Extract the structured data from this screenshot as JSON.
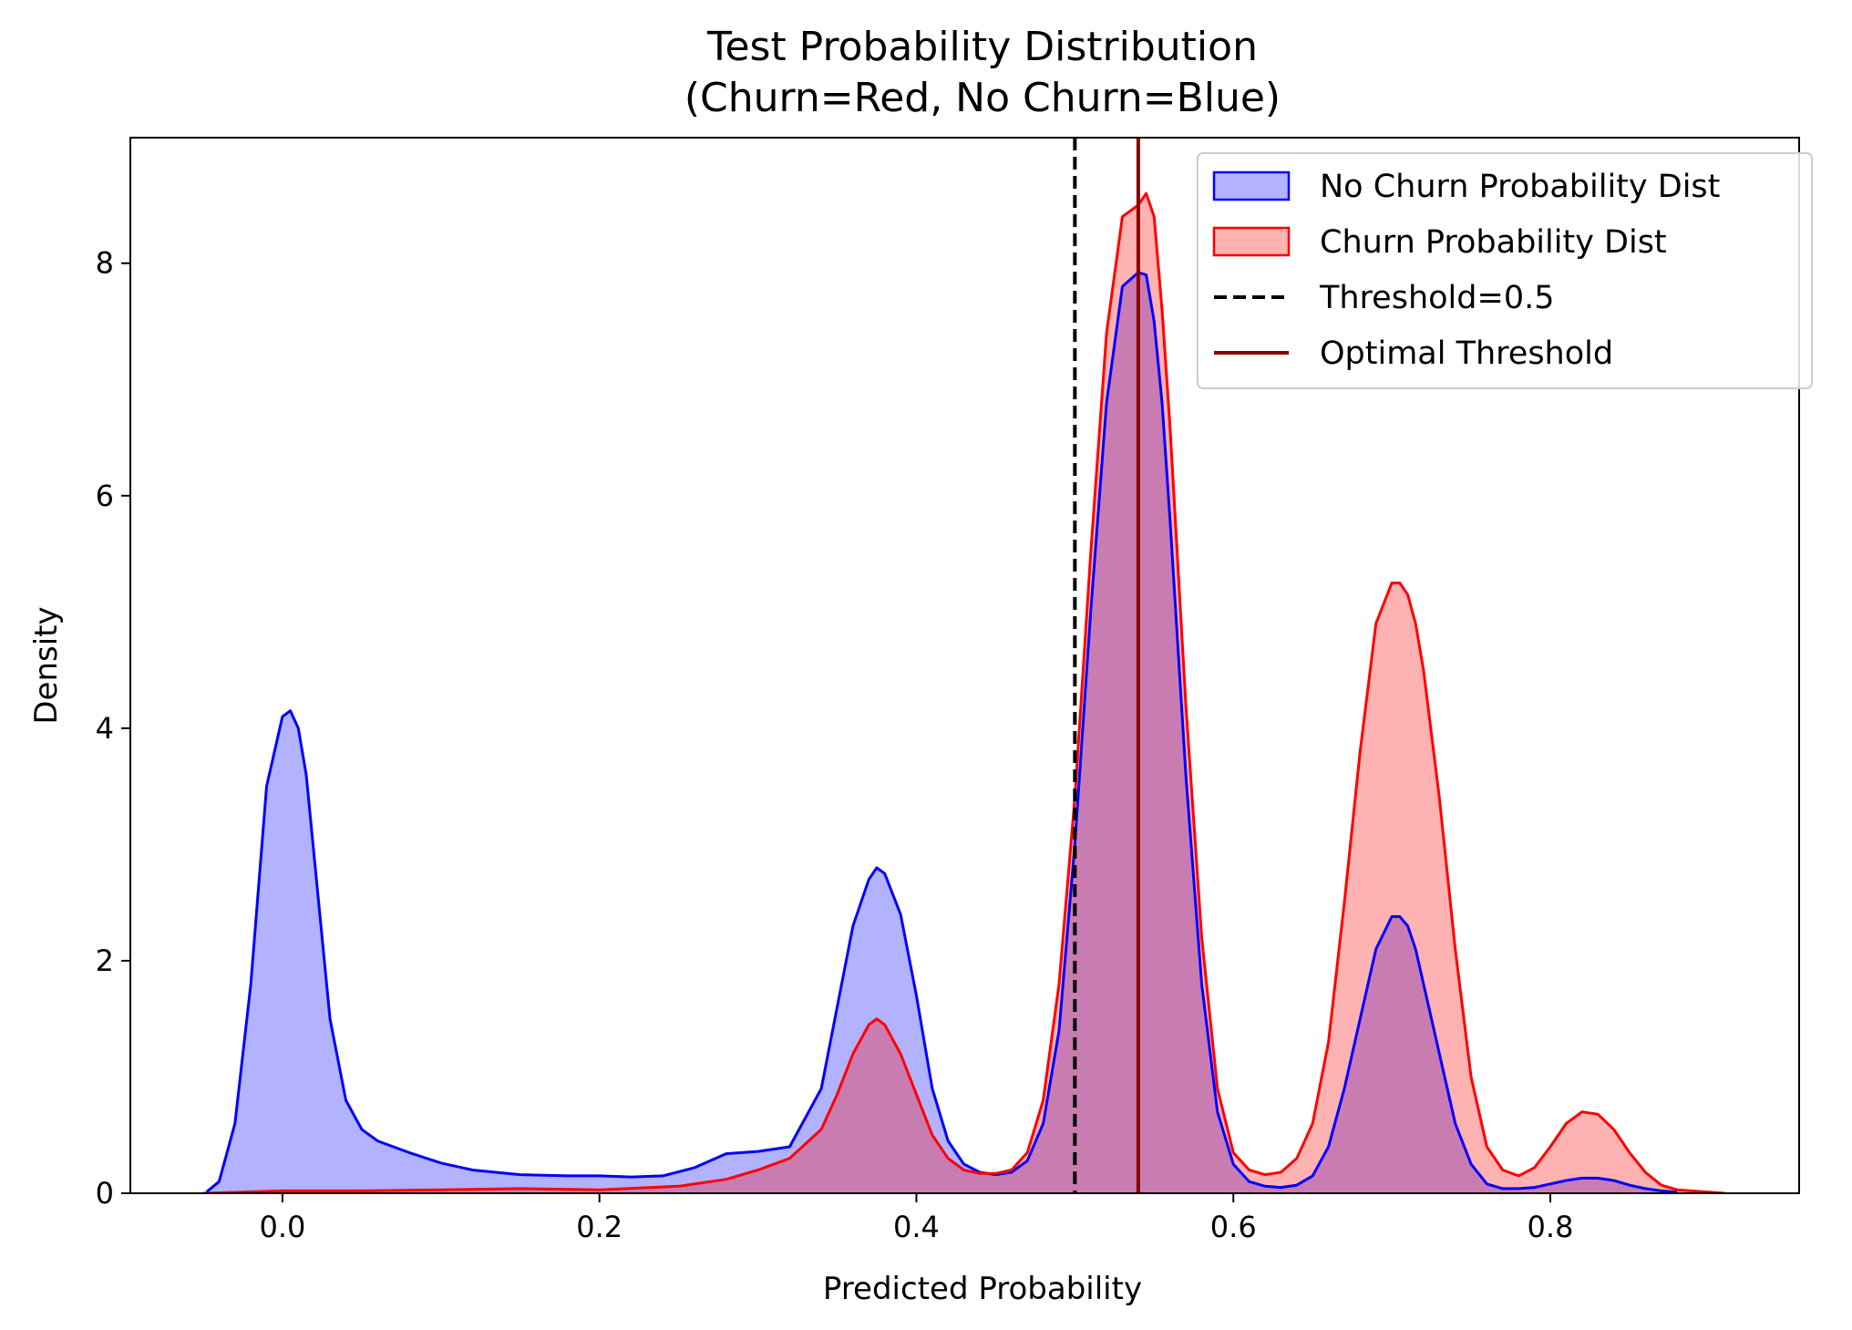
{
  "chart_data": {
    "type": "area",
    "title": "Test Probability Distribution",
    "subtitle": "(Churn=Red, No Churn=Blue)",
    "xlabel": "Predicted Probability",
    "ylabel": "Density",
    "xlim": [
      -0.096,
      0.957
    ],
    "ylim": [
      0,
      9.08
    ],
    "xticks": [
      0.0,
      0.2,
      0.4,
      0.6,
      0.8
    ],
    "xtick_labels": [
      "0.0",
      "0.2",
      "0.4",
      "0.6",
      "0.8"
    ],
    "yticks": [
      0,
      2,
      4,
      6,
      8
    ],
    "ytick_labels": [
      "0",
      "2",
      "4",
      "6",
      "8"
    ],
    "grid": false,
    "legend_position": "top-right",
    "series": [
      {
        "name": "No Churn Probability Dist",
        "kind": "kde",
        "color": "#0000ff",
        "fill": "#0000ff",
        "fill_opacity": 0.3,
        "x": [
          -0.048,
          -0.04,
          -0.03,
          -0.02,
          -0.01,
          0.0,
          0.005,
          0.01,
          0.015,
          0.02,
          0.03,
          0.04,
          0.05,
          0.06,
          0.08,
          0.1,
          0.12,
          0.15,
          0.18,
          0.2,
          0.22,
          0.24,
          0.26,
          0.28,
          0.3,
          0.32,
          0.34,
          0.35,
          0.36,
          0.37,
          0.375,
          0.38,
          0.39,
          0.4,
          0.41,
          0.42,
          0.43,
          0.44,
          0.45,
          0.46,
          0.47,
          0.48,
          0.49,
          0.5,
          0.51,
          0.52,
          0.53,
          0.54,
          0.545,
          0.55,
          0.555,
          0.56,
          0.57,
          0.58,
          0.59,
          0.6,
          0.61,
          0.62,
          0.63,
          0.64,
          0.65,
          0.66,
          0.67,
          0.68,
          0.69,
          0.7,
          0.705,
          0.71,
          0.715,
          0.72,
          0.73,
          0.74,
          0.75,
          0.76,
          0.77,
          0.78,
          0.79,
          0.8,
          0.81,
          0.82,
          0.83,
          0.84,
          0.85,
          0.86,
          0.87,
          0.88
        ],
        "y": [
          0.01,
          0.1,
          0.6,
          1.8,
          3.5,
          4.1,
          4.15,
          4.0,
          3.6,
          2.9,
          1.5,
          0.8,
          0.55,
          0.45,
          0.35,
          0.26,
          0.2,
          0.16,
          0.15,
          0.15,
          0.14,
          0.15,
          0.22,
          0.34,
          0.36,
          0.4,
          0.9,
          1.6,
          2.3,
          2.7,
          2.8,
          2.75,
          2.4,
          1.7,
          0.9,
          0.45,
          0.25,
          0.18,
          0.16,
          0.18,
          0.28,
          0.6,
          1.4,
          3.0,
          5.0,
          6.8,
          7.8,
          7.92,
          7.9,
          7.5,
          6.8,
          5.8,
          3.6,
          1.8,
          0.7,
          0.25,
          0.1,
          0.06,
          0.05,
          0.07,
          0.15,
          0.4,
          0.9,
          1.5,
          2.1,
          2.38,
          2.38,
          2.3,
          2.1,
          1.8,
          1.2,
          0.6,
          0.25,
          0.08,
          0.04,
          0.04,
          0.05,
          0.08,
          0.11,
          0.13,
          0.13,
          0.11,
          0.07,
          0.04,
          0.02,
          0.01
        ]
      },
      {
        "name": "Churn Probability Dist",
        "kind": "kde",
        "color": "#ff0000",
        "fill": "#ff0000",
        "fill_opacity": 0.3,
        "x": [
          -0.05,
          0.0,
          0.05,
          0.1,
          0.15,
          0.2,
          0.25,
          0.28,
          0.3,
          0.32,
          0.34,
          0.35,
          0.36,
          0.37,
          0.375,
          0.38,
          0.39,
          0.4,
          0.41,
          0.42,
          0.43,
          0.44,
          0.45,
          0.46,
          0.47,
          0.48,
          0.49,
          0.5,
          0.51,
          0.52,
          0.53,
          0.54,
          0.545,
          0.55,
          0.555,
          0.56,
          0.57,
          0.58,
          0.59,
          0.6,
          0.61,
          0.62,
          0.63,
          0.64,
          0.65,
          0.66,
          0.67,
          0.68,
          0.69,
          0.7,
          0.705,
          0.71,
          0.715,
          0.72,
          0.73,
          0.74,
          0.75,
          0.76,
          0.77,
          0.78,
          0.79,
          0.8,
          0.81,
          0.82,
          0.83,
          0.84,
          0.85,
          0.86,
          0.87,
          0.88,
          0.9,
          0.91
        ],
        "y": [
          0.0,
          0.02,
          0.02,
          0.03,
          0.04,
          0.03,
          0.06,
          0.12,
          0.2,
          0.3,
          0.55,
          0.85,
          1.2,
          1.45,
          1.5,
          1.45,
          1.2,
          0.85,
          0.5,
          0.3,
          0.2,
          0.17,
          0.17,
          0.2,
          0.35,
          0.8,
          1.8,
          3.4,
          5.5,
          7.4,
          8.4,
          8.5,
          8.6,
          8.4,
          7.6,
          6.6,
          4.2,
          2.2,
          0.9,
          0.35,
          0.2,
          0.16,
          0.18,
          0.3,
          0.6,
          1.3,
          2.5,
          3.8,
          4.9,
          5.25,
          5.25,
          5.15,
          4.9,
          4.5,
          3.4,
          2.1,
          1.0,
          0.4,
          0.2,
          0.15,
          0.22,
          0.4,
          0.6,
          0.7,
          0.68,
          0.55,
          0.35,
          0.18,
          0.07,
          0.03,
          0.01,
          0.0
        ]
      }
    ],
    "vlines": [
      {
        "name": "Threshold=0.5",
        "x": 0.5,
        "color": "#000000",
        "style": "dashed"
      },
      {
        "name": "Optimal Threshold",
        "x": 0.54,
        "color": "#8b0000",
        "style": "solid"
      }
    ],
    "legend": [
      {
        "label": "No Churn Probability Dist",
        "kind": "patch",
        "stroke": "#0000ff",
        "fill": "#0000ff",
        "fill_opacity": 0.3
      },
      {
        "label": "Churn Probability Dist",
        "kind": "patch",
        "stroke": "#ff0000",
        "fill": "#ff0000",
        "fill_opacity": 0.3
      },
      {
        "label": "Threshold=0.5",
        "kind": "line",
        "stroke": "#000000",
        "style": "dashed"
      },
      {
        "label": "Optimal Threshold",
        "kind": "line",
        "stroke": "#8b0000",
        "style": "solid"
      }
    ]
  }
}
